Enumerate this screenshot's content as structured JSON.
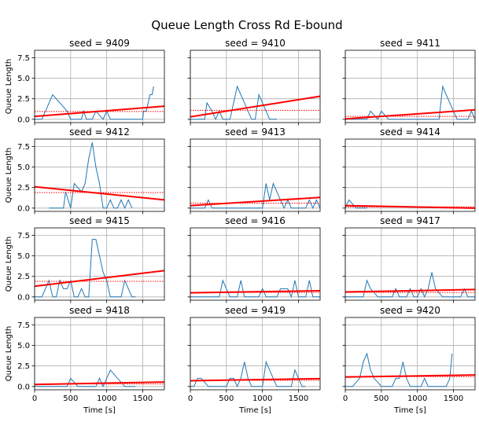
{
  "figure": {
    "title": "Queue Length  Cross Rd  E-bound",
    "x_axis_label": "Time [s]",
    "y_axis_label": "Queue Length",
    "x_tick_labels": [
      "0",
      "500",
      "1000",
      "1500"
    ],
    "y_tick_labels": [
      "0.0",
      "2.5",
      "5.0",
      "7.5"
    ]
  },
  "colors": {
    "series": "#1f77b4",
    "trend": "#ff0000",
    "mean": "#ff0000",
    "grid": "#b0b0b0"
  },
  "chart_data": [
    {
      "type": "line",
      "title": "seed = 9409",
      "xlim": [
        0,
        1800
      ],
      "ylim": [
        -0.4,
        8.4
      ],
      "grid": true,
      "x": [
        0,
        100,
        150,
        250,
        300,
        350,
        400,
        450,
        500,
        550,
        600,
        650,
        680,
        720,
        800,
        850,
        900,
        950,
        1000,
        1050,
        1100,
        1150,
        1200,
        1250,
        1300,
        1350,
        1400,
        1450,
        1500,
        1510,
        1550,
        1600,
        1630,
        1650
      ],
      "y": [
        0,
        0,
        1,
        3,
        2.5,
        2,
        1.5,
        1,
        0,
        0,
        0,
        0,
        1,
        0,
        0,
        1,
        0.5,
        0,
        1,
        0,
        0,
        0,
        0,
        0,
        0,
        0,
        0,
        0,
        0,
        1,
        1,
        3,
        3,
        4
      ],
      "trend": [
        0.35,
        1.6
      ],
      "mean": 0.95
    },
    {
      "type": "line",
      "title": "seed = 9410",
      "xlim": [
        0,
        1800
      ],
      "ylim": [
        -0.4,
        8.4
      ],
      "grid": true,
      "x": [
        0,
        100,
        200,
        230,
        300,
        350,
        400,
        450,
        500,
        550,
        600,
        650,
        700,
        750,
        800,
        850,
        900,
        950,
        1000,
        1050,
        1100,
        1150,
        1200
      ],
      "y": [
        0,
        0,
        0,
        2,
        1,
        0,
        1,
        0,
        0,
        0,
        2,
        4,
        3,
        2,
        1,
        0,
        0,
        3,
        2,
        1,
        0,
        0,
        0
      ],
      "trend": [
        0.3,
        2.8
      ],
      "mean": 1.1
    },
    {
      "type": "line",
      "title": "seed = 9411",
      "xlim": [
        0,
        1800
      ],
      "ylim": [
        -0.4,
        8.4
      ],
      "grid": true,
      "x": [
        0,
        100,
        200,
        300,
        350,
        400,
        450,
        500,
        550,
        600,
        650,
        700,
        800,
        900,
        1000,
        1100,
        1200,
        1300,
        1350,
        1400,
        1450,
        1500,
        1550,
        1600,
        1650,
        1700,
        1750,
        1800
      ],
      "y": [
        0,
        0,
        0,
        0,
        1,
        0.5,
        0,
        1,
        0.5,
        0,
        0,
        0,
        0,
        0,
        0,
        0,
        0,
        0,
        4,
        3,
        2,
        1,
        0,
        0,
        0,
        0,
        1,
        0
      ],
      "trend": [
        0.05,
        1.15
      ],
      "mean": 0.35
    },
    {
      "type": "line",
      "title": "seed = 9412",
      "xlim": [
        0,
        1800
      ],
      "ylim": [
        -0.4,
        8.4
      ],
      "grid": true,
      "x": [
        200,
        300,
        350,
        400,
        430,
        500,
        550,
        600,
        650,
        700,
        750,
        800,
        850,
        900,
        950,
        1000,
        1050,
        1100,
        1150,
        1200,
        1250,
        1300,
        1350
      ],
      "y": [
        0,
        0,
        0,
        0,
        2,
        0,
        3,
        2.5,
        2,
        3,
        6,
        8,
        5,
        3,
        0,
        0,
        1,
        0,
        0,
        1,
        0,
        1,
        0
      ],
      "trend": [
        2.6,
        1.0
      ],
      "mean": 1.9
    },
    {
      "type": "line",
      "title": "seed = 9413",
      "xlim": [
        0,
        1800
      ],
      "ylim": [
        -0.4,
        8.4
      ],
      "grid": true,
      "x": [
        0,
        100,
        200,
        250,
        300,
        350,
        400,
        450,
        500,
        550,
        600,
        650,
        700,
        750,
        800,
        850,
        900,
        950,
        1000,
        1050,
        1100,
        1150,
        1200,
        1250,
        1300,
        1350,
        1400,
        1450,
        1500,
        1550,
        1600,
        1650,
        1700,
        1750,
        1800
      ],
      "y": [
        0,
        0,
        0,
        1,
        0,
        0,
        0,
        0,
        0,
        0,
        0,
        0,
        0,
        0,
        0,
        0,
        0,
        0,
        0,
        3,
        1,
        3,
        2,
        1,
        0,
        1,
        0,
        0,
        0,
        0,
        0,
        1,
        0,
        1,
        0
      ],
      "trend": [
        0.3,
        1.3
      ],
      "mean": 0.6
    },
    {
      "type": "line",
      "title": "seed = 9414",
      "xlim": [
        0,
        1800
      ],
      "ylim": [
        -0.4,
        8.4
      ],
      "grid": true,
      "x": [
        0,
        50,
        100,
        150,
        200,
        250,
        300
      ],
      "y": [
        0,
        1,
        0.5,
        0,
        0,
        0,
        0
      ],
      "trend": [
        0.3,
        0.0
      ],
      "mean": 0.15
    },
    {
      "type": "line",
      "title": "seed = 9415",
      "xlim": [
        0,
        1800
      ],
      "ylim": [
        -0.4,
        8.4
      ],
      "grid": true,
      "x": [
        0,
        100,
        200,
        250,
        300,
        350,
        400,
        450,
        500,
        550,
        600,
        650,
        700,
        750,
        800,
        850,
        900,
        950,
        1000,
        1050,
        1100,
        1150,
        1200,
        1250,
        1300,
        1350,
        1400
      ],
      "y": [
        0,
        0,
        2,
        0,
        0,
        2,
        1,
        1,
        2,
        0,
        0,
        1,
        0,
        0,
        7,
        7,
        5,
        3,
        2,
        0,
        0,
        0,
        0,
        2,
        1,
        0,
        0
      ],
      "trend": [
        1.3,
        3.2
      ],
      "mean": 1.9
    },
    {
      "type": "line",
      "title": "seed = 9416",
      "xlim": [
        0,
        1800
      ],
      "ylim": [
        -0.4,
        8.4
      ],
      "grid": true,
      "x": [
        0,
        100,
        200,
        300,
        400,
        450,
        500,
        550,
        600,
        650,
        700,
        750,
        800,
        850,
        900,
        950,
        1000,
        1050,
        1100,
        1150,
        1200,
        1250,
        1300,
        1350,
        1400,
        1450,
        1500,
        1550,
        1600,
        1650,
        1700,
        1750,
        1800
      ],
      "y": [
        0,
        0,
        0,
        0,
        0,
        2,
        1,
        0,
        0,
        0,
        2,
        0,
        0,
        0,
        0,
        0,
        1,
        0,
        0,
        0,
        0,
        1,
        1,
        1,
        0,
        2,
        0,
        0,
        0,
        2,
        0,
        0,
        0
      ],
      "trend": [
        0.5,
        0.75
      ],
      "mean": 0.55
    },
    {
      "type": "line",
      "title": "seed = 9417",
      "xlim": [
        0,
        1800
      ],
      "ylim": [
        -0.4,
        8.4
      ],
      "grid": true,
      "x": [
        0,
        100,
        200,
        250,
        300,
        350,
        400,
        450,
        500,
        550,
        600,
        650,
        700,
        750,
        800,
        850,
        900,
        950,
        1000,
        1050,
        1100,
        1150,
        1200,
        1250,
        1300,
        1350,
        1400,
        1450,
        1500,
        1550,
        1600,
        1650,
        1700,
        1750,
        1800
      ],
      "y": [
        0,
        0,
        0,
        0,
        2,
        1,
        0.5,
        0,
        0,
        0,
        0,
        0,
        1,
        0,
        0,
        0,
        1,
        0,
        0,
        1,
        0,
        1,
        3,
        1,
        0.5,
        0,
        0,
        0,
        0,
        0,
        0,
        1,
        0,
        0,
        0
      ],
      "trend": [
        0.6,
        0.9
      ],
      "mean": 0.55
    },
    {
      "type": "line",
      "title": "seed = 9418",
      "xlim": [
        0,
        1800
      ],
      "ylim": [
        -0.4,
        8.4
      ],
      "grid": true,
      "x": [
        0,
        100,
        200,
        300,
        400,
        450,
        500,
        550,
        600,
        650,
        700,
        750,
        800,
        850,
        900,
        950,
        1000,
        1050,
        1100,
        1150,
        1200,
        1250,
        1300,
        1350,
        1400
      ],
      "y": [
        0,
        0,
        0,
        0,
        0,
        0,
        1,
        0.5,
        0,
        0,
        0,
        0,
        0,
        0,
        1,
        0,
        1,
        2,
        1.5,
        1,
        0.5,
        0,
        0,
        0,
        0
      ],
      "trend": [
        0.25,
        0.55
      ],
      "mean": 0.3
    },
    {
      "type": "line",
      "title": "seed = 9419",
      "xlim": [
        0,
        1800
      ],
      "ylim": [
        -0.4,
        8.4
      ],
      "grid": true,
      "x": [
        0,
        50,
        100,
        150,
        200,
        250,
        300,
        350,
        400,
        450,
        500,
        550,
        600,
        650,
        700,
        750,
        800,
        850,
        900,
        950,
        1000,
        1050,
        1100,
        1150,
        1200,
        1250,
        1300,
        1350,
        1400,
        1450,
        1500,
        1550,
        1600
      ],
      "y": [
        0,
        0,
        1,
        1,
        0.5,
        0,
        0,
        0,
        0,
        0,
        0,
        1,
        1,
        0,
        1,
        3,
        1,
        0,
        0,
        0,
        0,
        3,
        2,
        1,
        0,
        0,
        0,
        0,
        0,
        2,
        1,
        0,
        0
      ],
      "trend": [
        0.7,
        0.95
      ],
      "mean": 0.75
    },
    {
      "type": "line",
      "title": "seed = 9420",
      "xlim": [
        0,
        1800
      ],
      "ylim": [
        -0.4,
        8.4
      ],
      "grid": true,
      "x": [
        0,
        100,
        200,
        250,
        300,
        350,
        400,
        450,
        500,
        550,
        600,
        650,
        700,
        750,
        800,
        850,
        900,
        950,
        1000,
        1050,
        1100,
        1150,
        1200,
        1250,
        1300,
        1350,
        1400,
        1450,
        1480
      ],
      "y": [
        0,
        0,
        1,
        3,
        4,
        2,
        1,
        0.5,
        0,
        0,
        0,
        0,
        1,
        1,
        3,
        1,
        0,
        0,
        0,
        0,
        1,
        0,
        0,
        0,
        0,
        0,
        0,
        1,
        4
      ],
      "trend": [
        1.15,
        1.4
      ],
      "mean": 1.2
    }
  ]
}
